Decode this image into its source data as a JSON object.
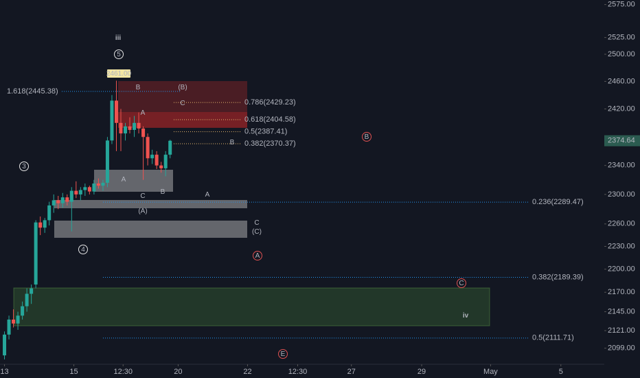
{
  "chart_data": {
    "type": "candlestick",
    "log_scale": true,
    "ylim": [
      2079,
      2582
    ],
    "yticks": [
      {
        "value": 2575,
        "label": "2575.00"
      },
      {
        "value": 2525,
        "label": "2525.00"
      },
      {
        "value": 2500,
        "label": "2500.00"
      },
      {
        "value": 2460,
        "label": "2460.00"
      },
      {
        "value": 2420,
        "label": "2420.00"
      },
      {
        "value": 2340,
        "label": "2340.00"
      },
      {
        "value": 2300,
        "label": "2300.00"
      },
      {
        "value": 2260,
        "label": "2260.00"
      },
      {
        "value": 2230,
        "label": "2230.00"
      },
      {
        "value": 2200,
        "label": "2200.00"
      },
      {
        "value": 2170,
        "label": "2170.00"
      },
      {
        "value": 2145,
        "label": "2145.00"
      },
      {
        "value": 2121,
        "label": "2121.00"
      },
      {
        "value": 2099,
        "label": "2099.00"
      }
    ],
    "xlim": [
      -1,
      134
    ],
    "xticks": [
      {
        "value": 0,
        "label": "13"
      },
      {
        "value": 15.5,
        "label": "15"
      },
      {
        "value": 26.5,
        "label": "12:30"
      },
      {
        "value": 38.8,
        "label": "20"
      },
      {
        "value": 54.3,
        "label": "22"
      },
      {
        "value": 65.5,
        "label": "12:30"
      },
      {
        "value": 77.5,
        "label": "27"
      },
      {
        "value": 93.2,
        "label": "29"
      },
      {
        "value": 108.6,
        "label": "May"
      },
      {
        "value": 124.3,
        "label": "5"
      }
    ],
    "up_color": "#26a69a",
    "down_color": "#ef5350",
    "x": [
      0,
      1,
      2,
      3,
      4,
      5,
      6,
      7,
      8,
      9,
      10,
      11,
      12,
      13,
      14,
      15,
      16,
      17,
      18,
      19,
      20,
      21,
      22,
      23,
      24,
      25,
      26,
      27,
      28,
      29,
      30,
      31,
      32,
      33,
      34,
      35,
      36,
      37
    ],
    "open": [
      2090,
      2116,
      2135,
      2130,
      2140,
      2152,
      2168,
      2180,
      2262,
      2255,
      2265,
      2285,
      2292,
      2288,
      2296,
      2290,
      2305,
      2300,
      2306,
      2310,
      2304,
      2315,
      2312,
      2316,
      2375,
      2432,
      2400,
      2385,
      2395,
      2390,
      2400,
      2392,
      2380,
      2350,
      2355,
      2340,
      2336,
      2355
    ],
    "high": [
      2120,
      2140,
      2148,
      2145,
      2158,
      2175,
      2180,
      2265,
      2270,
      2268,
      2290,
      2300,
      2298,
      2302,
      2300,
      2310,
      2318,
      2310,
      2315,
      2312,
      2320,
      2322,
      2320,
      2380,
      2440,
      2461,
      2420,
      2400,
      2408,
      2410,
      2415,
      2395,
      2385,
      2362,
      2360,
      2345,
      2360,
      2376
    ],
    "low": [
      2085,
      2110,
      2125,
      2122,
      2135,
      2145,
      2155,
      2175,
      2245,
      2248,
      2258,
      2275,
      2280,
      2282,
      2285,
      2250,
      2295,
      2292,
      2298,
      2300,
      2300,
      2308,
      2305,
      2310,
      2370,
      2360,
      2360,
      2375,
      2385,
      2380,
      2385,
      2320,
      2340,
      2342,
      2335,
      2330,
      2325,
      2350
    ],
    "close": [
      2116,
      2135,
      2130,
      2140,
      2152,
      2168,
      2175,
      2262,
      2255,
      2265,
      2285,
      2292,
      2288,
      2296,
      2290,
      2305,
      2300,
      2306,
      2310,
      2304,
      2315,
      2312,
      2316,
      2375,
      2432,
      2400,
      2385,
      2395,
      2390,
      2400,
      2392,
      2380,
      2350,
      2355,
      2340,
      2336,
      2355,
      2374.64
    ],
    "last_price": {
      "value": 2374.64,
      "label": "2374.64"
    },
    "levels": [
      {
        "value": 2445.38,
        "label": "1.618(2445.38)"
      },
      {
        "value": 2429.23,
        "label": "0.786(2429.23)"
      },
      {
        "value": 2404.58,
        "label": "0.618(2404.58)"
      },
      {
        "value": 2387.41,
        "label": "0.5(2387.41)"
      },
      {
        "value": 2370.37,
        "label": "0.382(2370.37)"
      },
      {
        "value": 2289.47,
        "label": "0.236(2289.47)"
      },
      {
        "value": 2189.39,
        "label": "0.382(2189.39)"
      },
      {
        "value": 2111.71,
        "label": "0.5(2111.71)"
      }
    ],
    "annotations": [
      "iii",
      "5",
      "2461.00",
      "B",
      "(B)",
      "C",
      "A",
      "B",
      "A",
      "B",
      "C",
      "A",
      "(A)",
      "C",
      "(C)",
      "3",
      "4",
      "A",
      "B",
      "C",
      "E",
      "iv"
    ]
  }
}
